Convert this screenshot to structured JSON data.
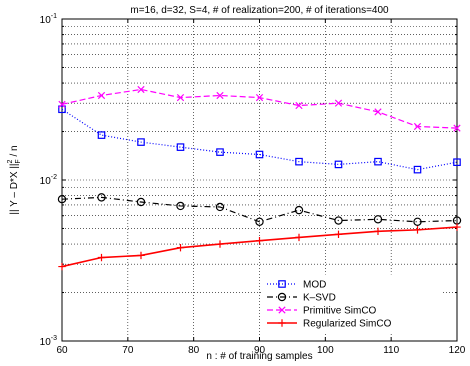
{
  "chart_data": {
    "type": "line",
    "title": "m=16, d=32, S=4, # of realization=200, # of iterations=400",
    "xlabel": "n : # of training samples",
    "ylabel": "|| Y – D*X ||²_F / n",
    "ylabel_parts": {
      "main": "|| Y – D*X ||",
      "sup": "2",
      "sub": "F",
      "tail": " / n"
    },
    "xscale": "linear",
    "yscale": "log",
    "xlim": [
      60,
      120
    ],
    "ylim": [
      0.001,
      0.1
    ],
    "grid": true,
    "legend_position": "lower-center",
    "x_ticks": [
      60,
      70,
      80,
      90,
      100,
      110,
      120
    ],
    "x_tick_labels": [
      "60",
      "70",
      "80",
      "90",
      "100",
      "110",
      "120"
    ],
    "y_ticks": [
      0.001,
      0.01,
      0.1
    ],
    "y_tick_labels": [
      {
        "base": "10",
        "exp": "-3"
      },
      {
        "base": "10",
        "exp": "-2"
      },
      {
        "base": "10",
        "exp": "-1"
      }
    ],
    "x": [
      60,
      66,
      72,
      78,
      84,
      90,
      96,
      102,
      108,
      114,
      120
    ],
    "series": [
      {
        "name": "MOD",
        "color": "#0000ff",
        "line_style": "dotted",
        "marker": "square",
        "values": [
          0.0275,
          0.019,
          0.0172,
          0.016,
          0.0149,
          0.0144,
          0.013,
          0.0125,
          0.013,
          0.0116,
          0.0129
        ]
      },
      {
        "name": "K–SVD",
        "color": "#000000",
        "line_style": "dashdot",
        "marker": "circle",
        "values": [
          0.0076,
          0.0078,
          0.0073,
          0.0069,
          0.0068,
          0.0055,
          0.0065,
          0.0056,
          0.0057,
          0.0055,
          0.0056
        ]
      },
      {
        "name": "Primitive SimCO",
        "color": "#ff00ff",
        "line_style": "dashed",
        "marker": "x",
        "values": [
          0.0295,
          0.0335,
          0.0365,
          0.0325,
          0.0335,
          0.0325,
          0.029,
          0.03,
          0.0265,
          0.0215,
          0.021
        ]
      },
      {
        "name": "Regularized SimCO",
        "color": "#ff0000",
        "line_style": "solid",
        "marker": "plus",
        "values": [
          0.0029,
          0.0033,
          0.0034,
          0.0038,
          0.004,
          0.0042,
          0.0044,
          0.0046,
          0.0048,
          0.0049,
          0.0051
        ]
      }
    ]
  }
}
